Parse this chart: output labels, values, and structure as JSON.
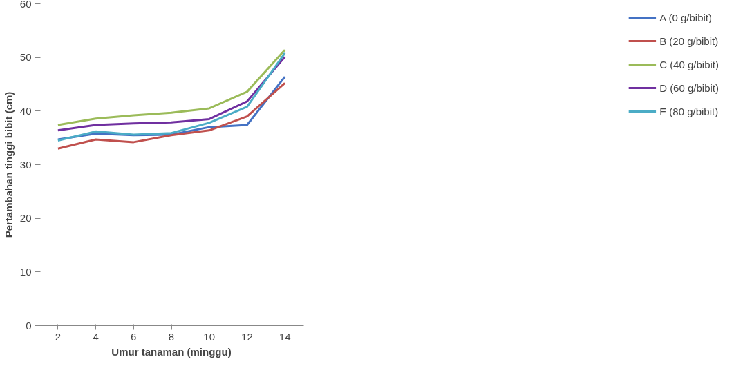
{
  "chart_data": {
    "type": "line",
    "xlabel": "Umur tanaman (minggu)",
    "ylabel": "Pertambahan tinggi bibit (cm)",
    "categories": [
      "2",
      "4",
      "6",
      "8",
      "10",
      "12",
      "14"
    ],
    "ylim": [
      0,
      60
    ],
    "yticks": [
      0,
      10,
      20,
      30,
      40,
      50,
      60
    ],
    "grid": false,
    "legend": "right",
    "marker": "none",
    "series": [
      {
        "name": "A (0 g/bibit)",
        "color": "#4472c4",
        "values": [
          34.7,
          35.8,
          35.5,
          35.6,
          37.0,
          37.4,
          46.4
        ]
      },
      {
        "name": "B (20 g/bibit)",
        "color": "#c0504d",
        "values": [
          33.0,
          34.7,
          34.2,
          35.5,
          36.4,
          39.0,
          45.2
        ]
      },
      {
        "name": "C (40 g/bibit)",
        "color": "#9bbb59",
        "values": [
          37.4,
          38.6,
          39.2,
          39.7,
          40.5,
          43.6,
          51.4
        ]
      },
      {
        "name": "D (60 g/bibit)",
        "color": "#7030a0",
        "values": [
          36.4,
          37.4,
          37.7,
          37.9,
          38.5,
          41.8,
          50.1
        ]
      },
      {
        "name": "E (80 g/bibit)",
        "color": "#4bacc6",
        "values": [
          34.5,
          36.2,
          35.6,
          35.9,
          37.8,
          40.8,
          50.8
        ]
      }
    ]
  }
}
